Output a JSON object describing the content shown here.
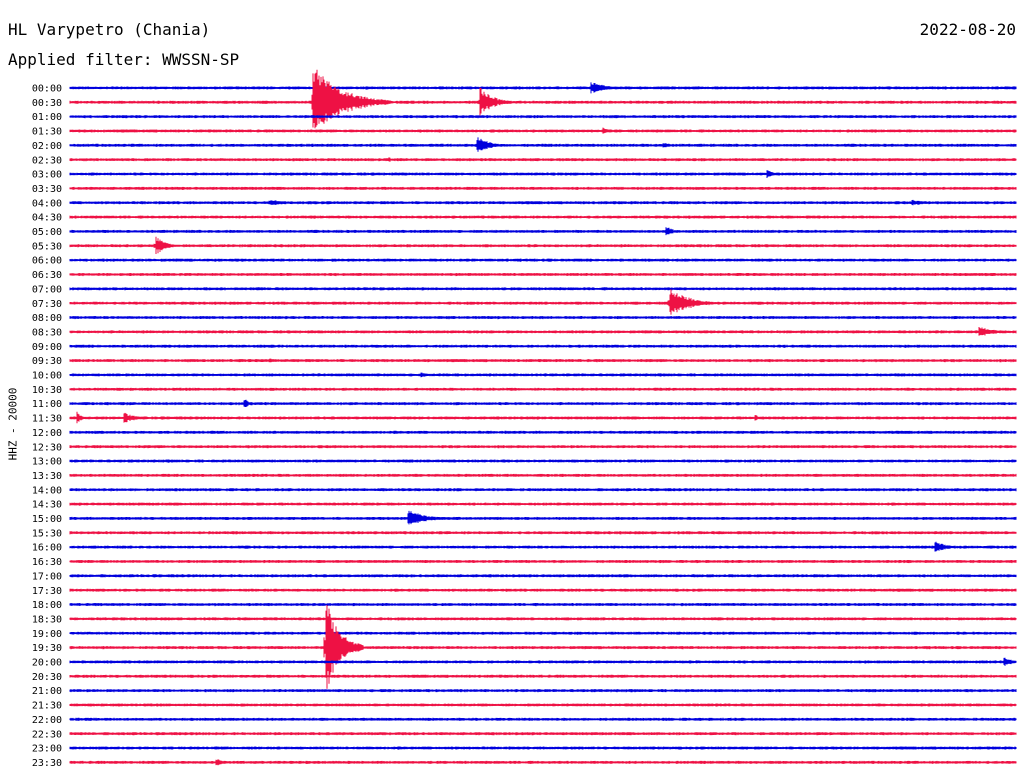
{
  "header": {
    "station": "HL Varypetro (Chania)",
    "date": "2022-08-20",
    "filter": "Applied filter: WWSSN-SP",
    "channel": "HHZ - 20000"
  },
  "colors": {
    "trace_a": "#0000dd",
    "trace_b": "#ee1144",
    "text": "#000000",
    "background": "#ffffff"
  },
  "chart_data": {
    "type": "line",
    "title": "HL Varypetro (Chania)",
    "ylabel": "HHZ - 20000",
    "series_names": [
      "blue traces (full hours)",
      "red traces (half hours)"
    ],
    "rows": [
      "00:00",
      "00:30",
      "01:00",
      "01:30",
      "02:00",
      "02:30",
      "03:00",
      "03:30",
      "04:00",
      "04:30",
      "05:00",
      "05:30",
      "06:00",
      "06:30",
      "07:00",
      "07:30",
      "08:00",
      "08:30",
      "09:00",
      "09:30",
      "10:00",
      "10:30",
      "11:00",
      "11:30",
      "12:00",
      "12:30",
      "13:00",
      "13:30",
      "14:00",
      "14:30",
      "15:00",
      "15:30",
      "16:00",
      "16:30",
      "17:00",
      "17:30",
      "18:00",
      "18:30",
      "19:00",
      "19:30",
      "20:00",
      "20:30",
      "21:00",
      "21:30",
      "22:00",
      "22:30",
      "23:00",
      "23:30"
    ],
    "events": [
      {
        "row": "00:00",
        "minute": 16.5,
        "amplitude": 0.55,
        "duration_min": 1.6
      },
      {
        "row": "00:30",
        "minute": 7.7,
        "amplitude": 3.2,
        "duration_min": 2.5
      },
      {
        "row": "00:30",
        "minute": 13.0,
        "amplitude": 1.3,
        "duration_min": 1.2
      },
      {
        "row": "01:30",
        "minute": 16.9,
        "amplitude": 0.3,
        "duration_min": 0.8
      },
      {
        "row": "02:00",
        "minute": 12.9,
        "amplitude": 0.75,
        "duration_min": 1.2
      },
      {
        "row": "02:00",
        "minute": 18.8,
        "amplitude": 0.3,
        "duration_min": 0.8
      },
      {
        "row": "02:30",
        "minute": 10.1,
        "amplitude": 0.25,
        "duration_min": 0.5
      },
      {
        "row": "03:00",
        "minute": 22.1,
        "amplitude": 0.35,
        "duration_min": 0.8
      },
      {
        "row": "04:00",
        "minute": 6.3,
        "amplitude": 0.3,
        "duration_min": 1.5
      },
      {
        "row": "04:00",
        "minute": 26.7,
        "amplitude": 0.25,
        "duration_min": 2.0
      },
      {
        "row": "04:30",
        "minute": 13.4,
        "amplitude": 0.2,
        "duration_min": 0.5
      },
      {
        "row": "05:00",
        "minute": 18.9,
        "amplitude": 0.5,
        "duration_min": 0.6
      },
      {
        "row": "05:30",
        "minute": 2.7,
        "amplitude": 0.9,
        "duration_min": 0.9
      },
      {
        "row": "07:30",
        "minute": 19.0,
        "amplitude": 1.3,
        "duration_min": 1.8
      },
      {
        "row": "08:30",
        "minute": 28.8,
        "amplitude": 0.5,
        "duration_min": 1.5
      },
      {
        "row": "09:30",
        "minute": 6.3,
        "amplitude": 0.25,
        "duration_min": 0.5
      },
      {
        "row": "10:00",
        "minute": 11.1,
        "amplitude": 0.3,
        "duration_min": 0.6
      },
      {
        "row": "11:00",
        "minute": 5.5,
        "amplitude": 0.5,
        "duration_min": 0.6
      },
      {
        "row": "11:30",
        "minute": 0.2,
        "amplitude": 0.7,
        "duration_min": 0.4
      },
      {
        "row": "11:30",
        "minute": 1.7,
        "amplitude": 0.5,
        "duration_min": 1.0
      },
      {
        "row": "11:30",
        "minute": 21.7,
        "amplitude": 0.35,
        "duration_min": 0.5
      },
      {
        "row": "15:00",
        "minute": 10.7,
        "amplitude": 0.8,
        "duration_min": 1.5
      },
      {
        "row": "15:30",
        "minute": 4.0,
        "amplitude": 0.2,
        "duration_min": 0.4
      },
      {
        "row": "16:00",
        "minute": 27.4,
        "amplitude": 0.6,
        "duration_min": 1.0
      },
      {
        "row": "18:00",
        "minute": 7.3,
        "amplitude": 0.2,
        "duration_min": 0.5
      },
      {
        "row": "19:30",
        "minute": 8.1,
        "amplitude": 4.3,
        "duration_min": 1.2
      },
      {
        "row": "20:00",
        "minute": 29.6,
        "amplitude": 0.5,
        "duration_min": 0.8
      },
      {
        "row": "22:00",
        "minute": 0.5,
        "amplitude": 0.2,
        "duration_min": 0.6
      },
      {
        "row": "23:30",
        "minute": 4.6,
        "amplitude": 0.35,
        "duration_min": 1.0
      }
    ]
  }
}
